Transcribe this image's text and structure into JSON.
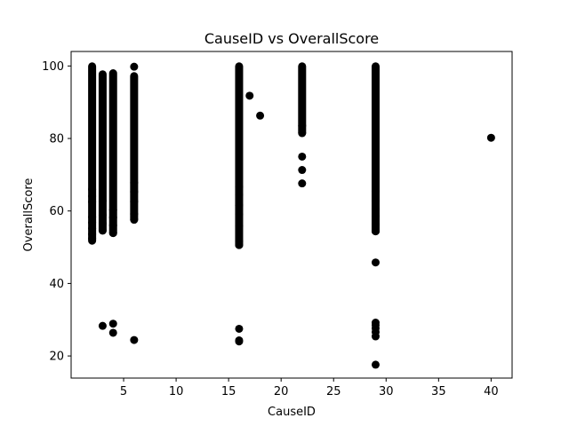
{
  "chart_data": {
    "type": "scatter",
    "title": "CauseID vs OverallScore",
    "xlabel": "CauseID",
    "ylabel": "OverallScore",
    "xlim": [
      -0.0,
      42.0
    ],
    "ylim": [
      13.9,
      104.0
    ],
    "x_ticks": [
      5,
      10,
      15,
      20,
      25,
      30,
      35,
      40
    ],
    "y_ticks": [
      20,
      40,
      60,
      80,
      100
    ],
    "grid": false,
    "marker_color": "#000000",
    "columns": [
      {
        "x": 2,
        "y_min": 51.8,
        "y_max": 99.9
      },
      {
        "x": 3,
        "y_min": 54.6,
        "y_max": 97.7
      },
      {
        "x": 4,
        "y_min": 53.9,
        "y_max": 98.0
      },
      {
        "x": 6,
        "y_min": 57.6,
        "y_max": 97.2
      },
      {
        "x": 16,
        "y_min": 50.6,
        "y_max": 99.9
      },
      {
        "x": 22,
        "y_min": 81.5,
        "y_max": 99.9
      },
      {
        "x": 29,
        "y_min": 54.4,
        "y_max": 99.9
      }
    ],
    "points": [
      {
        "x": 2,
        "y": 58.3
      },
      {
        "x": 2,
        "y": 56.8
      },
      {
        "x": 2,
        "y": 55.2
      },
      {
        "x": 2,
        "y": 53.6
      },
      {
        "x": 2,
        "y": 52.4
      },
      {
        "x": 2,
        "y": 62.5
      },
      {
        "x": 2,
        "y": 64.1
      },
      {
        "x": 2,
        "y": 66.0
      },
      {
        "x": 3,
        "y": 28.3
      },
      {
        "x": 3,
        "y": 54.6
      },
      {
        "x": 3,
        "y": 56.5
      },
      {
        "x": 3,
        "y": 58.9
      },
      {
        "x": 3,
        "y": 62.8
      },
      {
        "x": 4,
        "y": 28.9
      },
      {
        "x": 4,
        "y": 26.4
      },
      {
        "x": 4,
        "y": 53.9
      },
      {
        "x": 4,
        "y": 56.0
      },
      {
        "x": 4,
        "y": 58.2
      },
      {
        "x": 4,
        "y": 60.3
      },
      {
        "x": 6,
        "y": 99.8
      },
      {
        "x": 6,
        "y": 24.4
      },
      {
        "x": 6,
        "y": 57.6
      },
      {
        "x": 6,
        "y": 59.2
      },
      {
        "x": 6,
        "y": 62.6
      },
      {
        "x": 6,
        "y": 65.3
      },
      {
        "x": 6,
        "y": 67.8
      },
      {
        "x": 16,
        "y": 27.5
      },
      {
        "x": 16,
        "y": 24.3
      },
      {
        "x": 16,
        "y": 24.0
      },
      {
        "x": 16,
        "y": 50.6
      },
      {
        "x": 16,
        "y": 51.6
      },
      {
        "x": 16,
        "y": 55.9
      },
      {
        "x": 16,
        "y": 59.1
      },
      {
        "x": 16,
        "y": 61.6
      },
      {
        "x": 16,
        "y": 64.5
      },
      {
        "x": 16,
        "y": 66.7
      },
      {
        "x": 17,
        "y": 91.8
      },
      {
        "x": 18,
        "y": 86.3
      },
      {
        "x": 22,
        "y": 75.0
      },
      {
        "x": 22,
        "y": 71.3
      },
      {
        "x": 22,
        "y": 67.6
      },
      {
        "x": 22,
        "y": 81.5
      },
      {
        "x": 22,
        "y": 83.5
      },
      {
        "x": 29,
        "y": 45.8
      },
      {
        "x": 29,
        "y": 29.2
      },
      {
        "x": 29,
        "y": 28.5
      },
      {
        "x": 29,
        "y": 27.6
      },
      {
        "x": 29,
        "y": 26.6
      },
      {
        "x": 29,
        "y": 25.4
      },
      {
        "x": 29,
        "y": 17.6
      },
      {
        "x": 29,
        "y": 54.4
      },
      {
        "x": 29,
        "y": 56.3
      },
      {
        "x": 29,
        "y": 58.6
      },
      {
        "x": 29,
        "y": 60.5
      },
      {
        "x": 29,
        "y": 62.7
      },
      {
        "x": 29,
        "y": 65.4
      },
      {
        "x": 40,
        "y": 80.2
      }
    ]
  }
}
